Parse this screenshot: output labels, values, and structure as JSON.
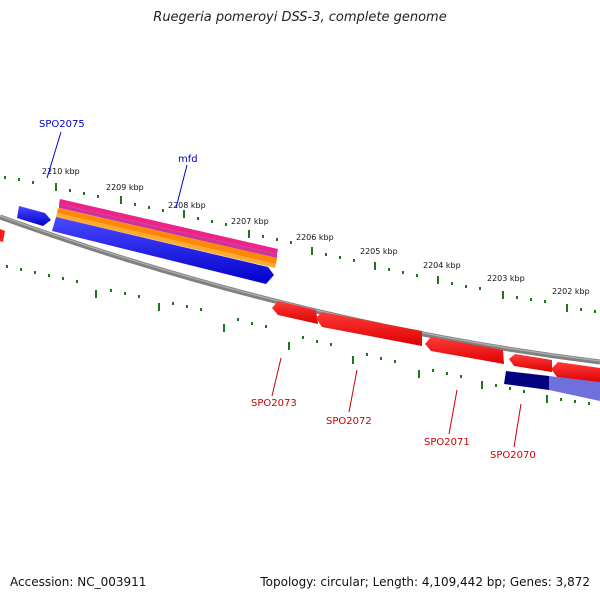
{
  "title": "Ruegeria pomeroyi DSS-3, complete genome",
  "footer": {
    "accession": "Accession: NC_003911",
    "summary": "Topology: circular; Length: 4,109,442 bp; Genes: 3,872"
  },
  "ruler_labels": [
    "2210 kbp",
    "2209 kbp",
    "2208 kbp",
    "2207 kbp",
    "2206 kbp",
    "2205 kbp",
    "2204 kbp",
    "2203 kbp",
    "2202 kbp"
  ],
  "feature_labels": {
    "top": [
      "SPO2075",
      "mfd"
    ],
    "bottom": [
      "SPO2073",
      "SPO2072",
      "SPO2071",
      "SPO2070"
    ]
  },
  "colors": {
    "backbone": "#808080",
    "tick": "#1a7a1a",
    "forward_gene": "#1a1aff",
    "reverse_gene": "#ff1a1a",
    "label_blue": "#0000cc",
    "label_red": "#cc0000",
    "rna_pink": "#ee2288",
    "orange": "#ff8800",
    "navy": "#000080",
    "lavender": "#7070dd"
  }
}
